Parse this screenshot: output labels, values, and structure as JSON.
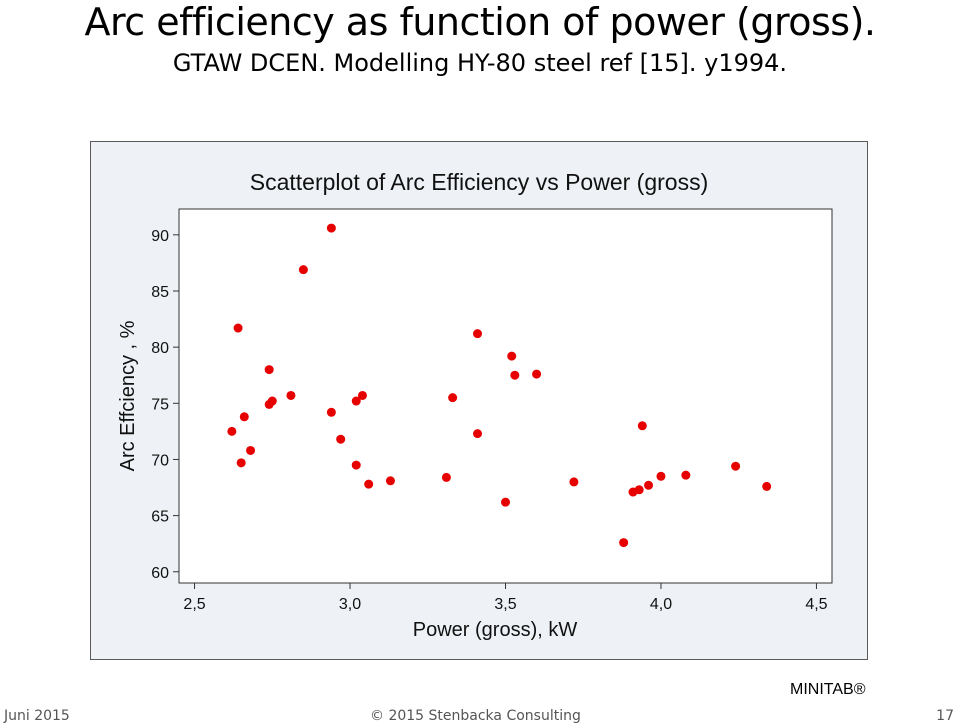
{
  "slide": {
    "title_line1": "Arc efficiency as function of power (gross).",
    "title_line2": "GTAW DCEN. Modelling HY-80 steel ref [15]. y1994."
  },
  "footer": {
    "date": "Juni 2015",
    "copyright": "© 2015  Stenbacka Consulting",
    "page": "17",
    "software": "MINITAB®"
  },
  "chart_data": {
    "type": "scatter",
    "title": "Scatterplot of Arc Efficiency vs Power (gross)",
    "xlabel": "Power (gross), kW",
    "ylabel": "Arc Effciency , %",
    "xlim": [
      2.45,
      4.55
    ],
    "ylim": [
      59,
      92.3
    ],
    "xticks": [
      "2,5",
      "3,0",
      "3,5",
      "4,0",
      "4,5"
    ],
    "xtick_values": [
      2.5,
      3.0,
      3.5,
      4.0,
      4.5
    ],
    "yticks": [
      "60",
      "65",
      "70",
      "75",
      "80",
      "85",
      "90"
    ],
    "ytick_values": [
      60,
      65,
      70,
      75,
      80,
      85,
      90
    ],
    "marker_color": "#e60000",
    "plot_background": "#ffffff",
    "frame_background": "#eef2f7",
    "grid": false,
    "points": [
      {
        "x": 2.62,
        "y": 72.5
      },
      {
        "x": 2.64,
        "y": 81.7
      },
      {
        "x": 2.65,
        "y": 69.7
      },
      {
        "x": 2.66,
        "y": 73.8
      },
      {
        "x": 2.68,
        "y": 70.8
      },
      {
        "x": 2.74,
        "y": 78.0
      },
      {
        "x": 2.74,
        "y": 74.9
      },
      {
        "x": 2.75,
        "y": 75.2
      },
      {
        "x": 2.81,
        "y": 75.7
      },
      {
        "x": 2.85,
        "y": 86.9
      },
      {
        "x": 2.94,
        "y": 90.6
      },
      {
        "x": 2.94,
        "y": 74.2
      },
      {
        "x": 2.97,
        "y": 71.8
      },
      {
        "x": 3.02,
        "y": 69.5
      },
      {
        "x": 3.02,
        "y": 75.2
      },
      {
        "x": 3.04,
        "y": 75.7
      },
      {
        "x": 3.06,
        "y": 67.8
      },
      {
        "x": 3.13,
        "y": 68.1
      },
      {
        "x": 3.31,
        "y": 68.4
      },
      {
        "x": 3.33,
        "y": 75.5
      },
      {
        "x": 3.41,
        "y": 81.2
      },
      {
        "x": 3.41,
        "y": 72.3
      },
      {
        "x": 3.5,
        "y": 66.2
      },
      {
        "x": 3.52,
        "y": 79.2
      },
      {
        "x": 3.53,
        "y": 77.5
      },
      {
        "x": 3.6,
        "y": 77.6
      },
      {
        "x": 3.72,
        "y": 68.0
      },
      {
        "x": 3.88,
        "y": 62.6
      },
      {
        "x": 3.91,
        "y": 67.1
      },
      {
        "x": 3.93,
        "y": 67.3
      },
      {
        "x": 3.94,
        "y": 73.0
      },
      {
        "x": 3.96,
        "y": 67.7
      },
      {
        "x": 4.0,
        "y": 68.5
      },
      {
        "x": 4.08,
        "y": 68.6
      },
      {
        "x": 4.24,
        "y": 69.4
      },
      {
        "x": 4.34,
        "y": 67.6
      }
    ]
  }
}
